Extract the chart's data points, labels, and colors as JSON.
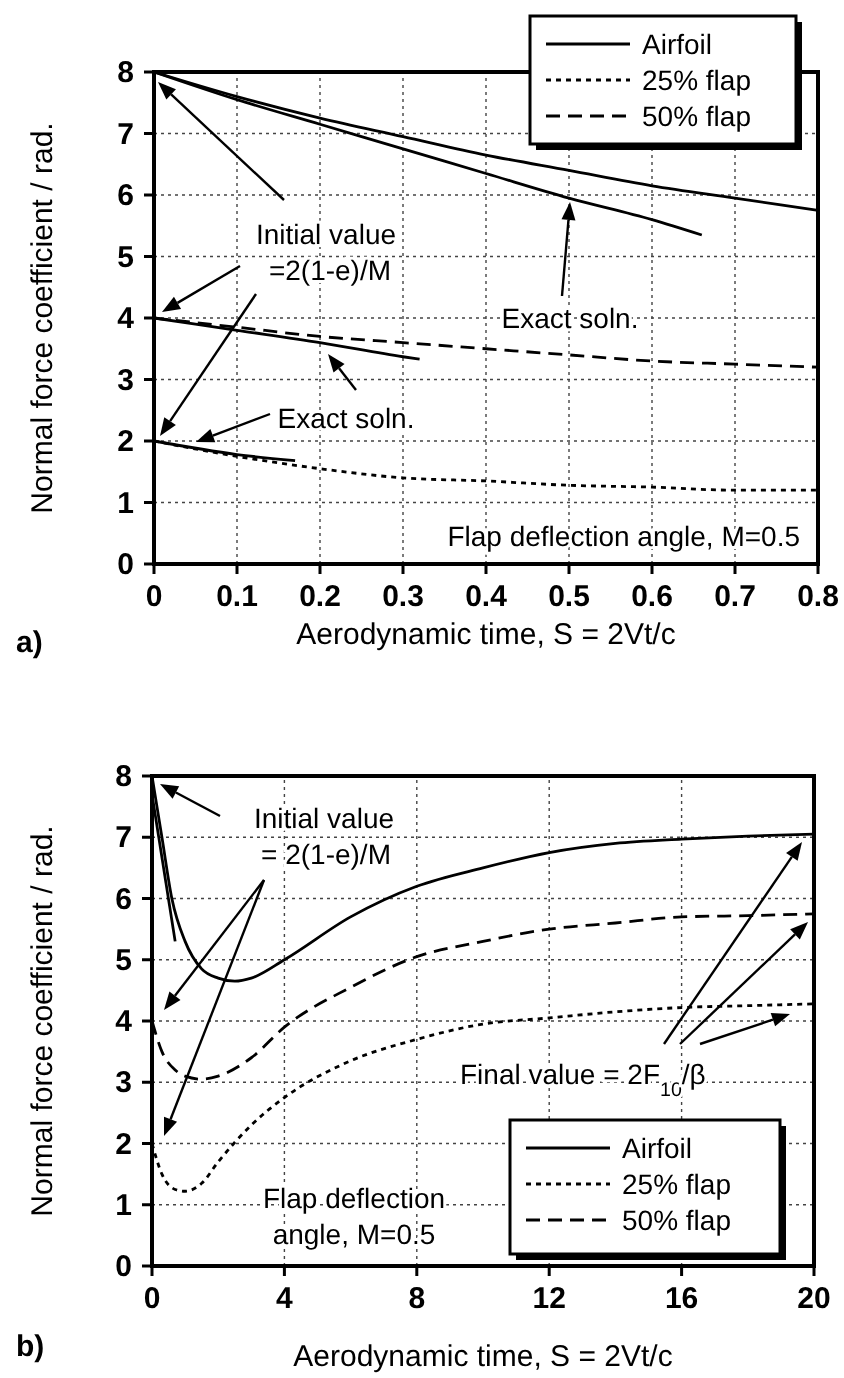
{
  "chart_data": [
    {
      "type": "line",
      "xlabel": "Aerodynamic time, S = 2Vt/c",
      "ylabel": "Normal force coefficient / rad.",
      "xlim": [
        0,
        0.8
      ],
      "ylim": [
        0,
        8
      ],
      "xticks": [
        0,
        0.1,
        0.2,
        0.3,
        0.4,
        0.5,
        0.6,
        0.7,
        0.8
      ],
      "yticks": [
        0,
        1,
        2,
        3,
        4,
        5,
        6,
        7,
        8
      ],
      "grid": true,
      "legend": "top right",
      "annotations": [
        "Initial value",
        "=2(1-e)/M",
        "Exact soln.",
        "Exact soln.",
        "Flap deflection angle, M=0.5",
        "a)"
      ],
      "series": [
        {
          "name": "Airfoil",
          "color": "#000000",
          "line_style": "solid",
          "x": [
            0,
            0.1,
            0.2,
            0.3,
            0.4,
            0.5,
            0.6,
            0.7,
            0.8
          ],
          "values": [
            8,
            7.6,
            7.25,
            6.95,
            6.65,
            6.4,
            6.15,
            5.95,
            5.75
          ]
        },
        {
          "name": "25% flap",
          "color": "#000000",
          "line_style": "dotted",
          "x": [
            0,
            0.1,
            0.2,
            0.3,
            0.4,
            0.5,
            0.6,
            0.7,
            0.8
          ],
          "values": [
            2,
            1.75,
            1.55,
            1.4,
            1.35,
            1.28,
            1.25,
            1.2,
            1.2
          ]
        },
        {
          "name": "50% flap",
          "color": "#000000",
          "line_style": "dashed",
          "x": [
            0,
            0.1,
            0.2,
            0.3,
            0.4,
            0.5,
            0.6,
            0.7,
            0.8
          ],
          "values": [
            4,
            3.85,
            3.7,
            3.6,
            3.5,
            3.4,
            3.3,
            3.25,
            3.2
          ]
        },
        {
          "color": "#000000",
          "line_style": "solid",
          "x": [
            0,
            0.1,
            0.2,
            0.3,
            0.4,
            0.5,
            0.6,
            0.66
          ],
          "values": [
            8,
            7.55,
            7.15,
            6.75,
            6.35,
            5.95,
            5.6,
            5.35
          ]
        },
        {
          "color": "#000000",
          "line_style": "solid",
          "x": [
            0,
            0.1,
            0.2,
            0.3,
            0.32
          ],
          "values": [
            4,
            3.8,
            3.6,
            3.37,
            3.33
          ]
        },
        {
          "color": "#000000",
          "line_style": "solid",
          "x": [
            0,
            0.1,
            0.17
          ],
          "values": [
            2,
            1.78,
            1.68
          ]
        }
      ]
    },
    {
      "type": "line",
      "xlabel": "Aerodynamic time, S = 2Vt/c",
      "ylabel": "Normal force coefficient / rad.",
      "xlim": [
        0,
        20
      ],
      "ylim": [
        0,
        8
      ],
      "xticks": [
        0,
        4,
        8,
        12,
        16,
        20
      ],
      "yticks": [
        0,
        1,
        2,
        3,
        4,
        5,
        6,
        7,
        8
      ],
      "grid": true,
      "legend": "bottom right",
      "annotations": [
        "Initial value",
        "= 2(1-e)/M",
        "Final value = 2F$_{10}$/β",
        "Flap deflection",
        "angle, M=0.5",
        "b)"
      ],
      "series": [
        {
          "name": "Airfoil",
          "color": "#000000",
          "line_style": "solid",
          "x": [
            0,
            0.3,
            0.6,
            1,
            1.5,
            2,
            2.5,
            3,
            4,
            6,
            8,
            10,
            12,
            14,
            16,
            18,
            20
          ],
          "values": [
            8,
            7,
            6,
            5.3,
            4.85,
            4.7,
            4.65,
            4.7,
            5,
            5.7,
            6.2,
            6.5,
            6.75,
            6.9,
            6.97,
            7.02,
            7.05
          ]
        },
        {
          "name": "25% flap",
          "color": "#000000",
          "line_style": "dotted",
          "x": [
            0,
            0.3,
            0.7,
            1,
            1.5,
            2,
            3,
            4,
            6,
            8,
            10,
            12,
            14,
            16,
            18,
            20
          ],
          "values": [
            2,
            1.5,
            1.25,
            1.22,
            1.35,
            1.7,
            2.3,
            2.75,
            3.35,
            3.7,
            3.95,
            4.05,
            4.15,
            4.22,
            4.25,
            4.28
          ]
        },
        {
          "name": "50% flap",
          "color": "#000000",
          "line_style": "dashed",
          "x": [
            0,
            0.3,
            0.7,
            1,
            1.5,
            2,
            3,
            4,
            6,
            8,
            10,
            12,
            14,
            16,
            18,
            20
          ],
          "values": [
            4,
            3.5,
            3.2,
            3.1,
            3.05,
            3.1,
            3.4,
            3.9,
            4.55,
            5.05,
            5.3,
            5.5,
            5.6,
            5.7,
            5.72,
            5.75
          ]
        },
        {
          "color": "#000000",
          "line_style": "solid",
          "x": [
            0,
            0.7
          ],
          "values": [
            7.7,
            5.3
          ]
        }
      ]
    }
  ]
}
